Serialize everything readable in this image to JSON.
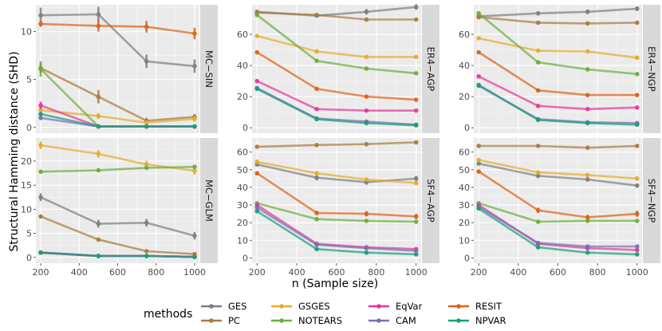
{
  "figure": {
    "ylabel": "Structural Hamming distance (SHD)",
    "xlabel": "n (Sample size)",
    "legend_title": "methods",
    "colors": {
      "GES": "#7f7f7f",
      "PC": "#a87c3f",
      "GSGES": "#e6ac2b",
      "NOTEARS": "#6aae3c",
      "EqVar": "#e5369a",
      "CAM": "#7b6fb8",
      "RESIT": "#dd6219",
      "NPVAR": "#1a9e77"
    },
    "legend_items": [
      {
        "name": "GES"
      },
      {
        "name": "PC"
      },
      {
        "name": "GSGES"
      },
      {
        "name": "NOTEARS"
      },
      {
        "name": "EqVar"
      },
      {
        "name": "CAM"
      },
      {
        "name": "RESIT"
      },
      {
        "name": "NPVAR"
      }
    ]
  },
  "chart_data": [
    {
      "type": "line",
      "strip": "MC−SIN",
      "x": [
        200,
        500,
        750,
        1000
      ],
      "xticks": [
        200,
        400,
        600,
        800,
        1000
      ],
      "ylim": [
        -0.6,
        12.8
      ],
      "yticks": [
        0,
        5,
        10
      ],
      "series": [
        {
          "name": "GES",
          "values": [
            11.7,
            11.8,
            6.9,
            6.4
          ],
          "err": [
            0.8,
            0.8,
            0.7,
            0.7
          ]
        },
        {
          "name": "PC",
          "values": [
            6.2,
            3.2,
            0.7,
            1.1
          ],
          "err": [
            0.5,
            0.7,
            0.3,
            0.3
          ]
        },
        {
          "name": "GSGES",
          "values": [
            1.8,
            1.2,
            0.5,
            0.9
          ],
          "err": [
            0.3,
            0.3,
            0.2,
            0.3
          ]
        },
        {
          "name": "NOTEARS",
          "values": [
            6.1,
            0.1,
            0.1,
            0.1
          ],
          "err": [
            0.8,
            0.1,
            0.1,
            0.1
          ]
        },
        {
          "name": "EqVar",
          "values": [
            2.3,
            0.1,
            0.1,
            0.1
          ],
          "err": [
            0.4,
            0.1,
            0.1,
            0.1
          ]
        },
        {
          "name": "CAM",
          "values": [
            1.0,
            0.1,
            0.1,
            0.1
          ],
          "err": [
            0.2,
            0.1,
            0.1,
            0.1
          ]
        },
        {
          "name": "RESIT",
          "values": [
            10.8,
            10.6,
            10.5,
            9.8
          ],
          "err": [
            0.3,
            0.6,
            0.6,
            0.6
          ]
        },
        {
          "name": "NPVAR",
          "values": [
            1.4,
            0.1,
            0.1,
            0.1
          ],
          "err": [
            0.2,
            0.1,
            0.1,
            0.1
          ]
        }
      ]
    },
    {
      "type": "line",
      "strip": "ER4−AGP",
      "x": [
        200,
        500,
        750,
        1000
      ],
      "xticks": [
        200,
        400,
        600,
        800,
        1000
      ],
      "ylim": [
        -3.5,
        79
      ],
      "yticks": [
        0,
        20,
        40,
        60
      ],
      "series": [
        {
          "name": "GES",
          "values": [
            74.5,
            72.0,
            74.5,
            77.5
          ],
          "err": [
            1.0,
            1.0,
            1.8,
            1.8
          ]
        },
        {
          "name": "PC",
          "values": [
            74.0,
            72.5,
            69.5,
            69.5
          ],
          "err": [
            0.6,
            0.6,
            0.6,
            0.6
          ]
        },
        {
          "name": "GSGES",
          "values": [
            59.0,
            49.0,
            45.5,
            45.5
          ],
          "err": [
            0.8,
            0.8,
            0.8,
            0.8
          ]
        },
        {
          "name": "NOTEARS",
          "values": [
            72.5,
            43.0,
            38.0,
            35.0
          ],
          "err": [
            0.8,
            0.8,
            0.8,
            0.8
          ]
        },
        {
          "name": "EqVar",
          "values": [
            30.0,
            12.0,
            11.0,
            11.0
          ],
          "err": [
            0.6,
            0.6,
            0.6,
            0.6
          ]
        },
        {
          "name": "CAM",
          "values": [
            25.5,
            6.0,
            4.0,
            2.0
          ],
          "err": [
            0.6,
            0.5,
            0.5,
            0.5
          ]
        },
        {
          "name": "RESIT",
          "values": [
            48.5,
            25.0,
            20.0,
            18.0
          ],
          "err": [
            0.6,
            0.6,
            0.6,
            0.6
          ]
        },
        {
          "name": "NPVAR",
          "values": [
            25.0,
            5.5,
            3.0,
            1.5
          ],
          "err": [
            0.6,
            0.5,
            0.5,
            0.5
          ]
        }
      ]
    },
    {
      "type": "line",
      "strip": "ER4−NGP",
      "x": [
        200,
        500,
        750,
        1000
      ],
      "xticks": [
        200,
        400,
        600,
        800,
        1000
      ],
      "ylim": [
        -3.5,
        79
      ],
      "yticks": [
        0,
        20,
        40,
        60
      ],
      "series": [
        {
          "name": "GES",
          "values": [
            71.5,
            73.5,
            74.5,
            76.5
          ],
          "err": [
            1.0,
            1.2,
            1.5,
            1.5
          ]
        },
        {
          "name": "PC",
          "values": [
            71.0,
            67.5,
            67.0,
            67.5
          ],
          "err": [
            0.6,
            0.6,
            0.6,
            0.6
          ]
        },
        {
          "name": "GSGES",
          "values": [
            57.5,
            49.5,
            49.0,
            45.0
          ],
          "err": [
            0.8,
            0.8,
            0.8,
            1.2
          ]
        },
        {
          "name": "NOTEARS",
          "values": [
            73.5,
            42.0,
            37.5,
            34.5
          ],
          "err": [
            0.8,
            0.8,
            0.8,
            0.8
          ]
        },
        {
          "name": "EqVar",
          "values": [
            33.0,
            14.0,
            12.0,
            13.0
          ],
          "err": [
            0.6,
            0.6,
            0.6,
            0.6
          ]
        },
        {
          "name": "CAM",
          "values": [
            27.0,
            5.5,
            3.5,
            3.0
          ],
          "err": [
            0.6,
            0.5,
            0.5,
            0.5
          ]
        },
        {
          "name": "RESIT",
          "values": [
            48.5,
            24.0,
            21.0,
            21.0
          ],
          "err": [
            0.6,
            0.6,
            0.6,
            0.6
          ]
        },
        {
          "name": "NPVAR",
          "values": [
            27.5,
            5.0,
            3.0,
            2.0
          ],
          "err": [
            0.6,
            0.5,
            0.5,
            0.5
          ]
        }
      ]
    },
    {
      "type": "line",
      "strip": "MC−GLM",
      "x": [
        200,
        500,
        750,
        1000
      ],
      "xticks": [
        200,
        400,
        600,
        800,
        1000
      ],
      "ylim": [
        -1.2,
        24.8
      ],
      "yticks": [
        0,
        5,
        10,
        15,
        20
      ],
      "series": [
        {
          "name": "GES",
          "values": [
            12.5,
            7.0,
            7.2,
            4.5
          ],
          "err": [
            0.8,
            0.8,
            0.8,
            0.8
          ]
        },
        {
          "name": "PC",
          "values": [
            8.5,
            3.7,
            1.3,
            0.7
          ],
          "err": [
            0.3,
            0.3,
            0.3,
            0.3
          ]
        },
        {
          "name": "GSGES",
          "values": [
            23.3,
            21.5,
            19.3,
            18.0
          ],
          "err": [
            0.8,
            0.8,
            0.8,
            0.8
          ]
        },
        {
          "name": "NOTEARS",
          "values": [
            17.8,
            18.1,
            18.6,
            18.8
          ],
          "err": [
            0.3,
            0.3,
            0.3,
            0.3
          ]
        },
        {
          "name": "EqVar",
          "values": [
            1.0,
            0.3,
            0.3,
            0.1
          ],
          "err": [
            0.1,
            0.1,
            0.1,
            0.1
          ]
        },
        {
          "name": "CAM",
          "values": [
            1.0,
            0.3,
            0.3,
            0.1
          ],
          "err": [
            0.1,
            0.1,
            0.1,
            0.1
          ]
        },
        {
          "name": "RESIT",
          "values": [
            1.0,
            0.3,
            0.3,
            0.1
          ],
          "err": [
            0.1,
            0.1,
            0.1,
            0.1
          ]
        },
        {
          "name": "NPVAR",
          "values": [
            1.0,
            0.3,
            0.3,
            0.1
          ],
          "err": [
            0.1,
            0.1,
            0.1,
            0.1
          ]
        }
      ]
    },
    {
      "type": "line",
      "strip": "SF4−AGP",
      "x": [
        200,
        500,
        750,
        1000
      ],
      "xticks": [
        200,
        400,
        600,
        800,
        1000
      ],
      "ylim": [
        -3,
        68
      ],
      "yticks": [
        0,
        10,
        20,
        30,
        40,
        50,
        60
      ],
      "series": [
        {
          "name": "GES",
          "values": [
            53.0,
            45.5,
            43.0,
            45.0
          ],
          "err": [
            0.8,
            1.5,
            1.5,
            1.5
          ]
        },
        {
          "name": "PC",
          "values": [
            63.0,
            64.0,
            64.5,
            65.5
          ],
          "err": [
            0.6,
            0.6,
            0.6,
            0.6
          ]
        },
        {
          "name": "GSGES",
          "values": [
            54.5,
            48.0,
            44.5,
            42.5
          ],
          "err": [
            0.8,
            0.8,
            0.8,
            1.0
          ]
        },
        {
          "name": "NOTEARS",
          "values": [
            31.0,
            22.0,
            21.0,
            20.5
          ],
          "err": [
            0.6,
            0.6,
            0.6,
            0.6
          ]
        },
        {
          "name": "EqVar",
          "values": [
            30.0,
            8.0,
            6.0,
            5.0
          ],
          "err": [
            0.6,
            0.6,
            0.6,
            0.6
          ]
        },
        {
          "name": "CAM",
          "values": [
            28.5,
            7.5,
            5.5,
            4.0
          ],
          "err": [
            0.6,
            0.6,
            0.6,
            0.6
          ]
        },
        {
          "name": "RESIT",
          "values": [
            48.0,
            25.5,
            25.0,
            23.5
          ],
          "err": [
            0.8,
            1.2,
            1.5,
            1.5
          ]
        },
        {
          "name": "NPVAR",
          "values": [
            26.5,
            5.0,
            3.0,
            2.0
          ],
          "err": [
            0.6,
            0.6,
            0.6,
            0.6
          ]
        }
      ]
    },
    {
      "type": "line",
      "strip": "SF4−NGP",
      "x": [
        200,
        500,
        750,
        1000
      ],
      "xticks": [
        200,
        400,
        600,
        800,
        1000
      ],
      "ylim": [
        -3,
        68
      ],
      "yticks": [
        0,
        10,
        20,
        30,
        40,
        50,
        60
      ],
      "series": [
        {
          "name": "GES",
          "values": [
            53.5,
            46.5,
            44.5,
            41.0
          ],
          "err": [
            0.8,
            1.2,
            1.2,
            1.2
          ]
        },
        {
          "name": "PC",
          "values": [
            63.5,
            63.5,
            62.5,
            63.5
          ],
          "err": [
            0.6,
            0.6,
            0.6,
            0.6
          ]
        },
        {
          "name": "GSGES",
          "values": [
            55.5,
            48.5,
            47.0,
            45.0
          ],
          "err": [
            0.8,
            0.8,
            0.8,
            0.8
          ]
        },
        {
          "name": "NOTEARS",
          "values": [
            31.0,
            20.5,
            21.0,
            21.0
          ],
          "err": [
            0.6,
            0.6,
            0.6,
            0.6
          ]
        },
        {
          "name": "EqVar",
          "values": [
            30.0,
            8.0,
            5.5,
            4.5
          ],
          "err": [
            0.6,
            0.6,
            0.6,
            0.6
          ]
        },
        {
          "name": "CAM",
          "values": [
            29.0,
            8.5,
            6.5,
            6.5
          ],
          "err": [
            0.6,
            0.6,
            0.6,
            0.6
          ]
        },
        {
          "name": "RESIT",
          "values": [
            49.0,
            27.0,
            23.0,
            25.0
          ],
          "err": [
            0.8,
            1.5,
            1.5,
            1.8
          ]
        },
        {
          "name": "NPVAR",
          "values": [
            28.0,
            6.0,
            3.0,
            2.0
          ],
          "err": [
            0.6,
            0.6,
            0.6,
            0.6
          ]
        }
      ]
    }
  ]
}
